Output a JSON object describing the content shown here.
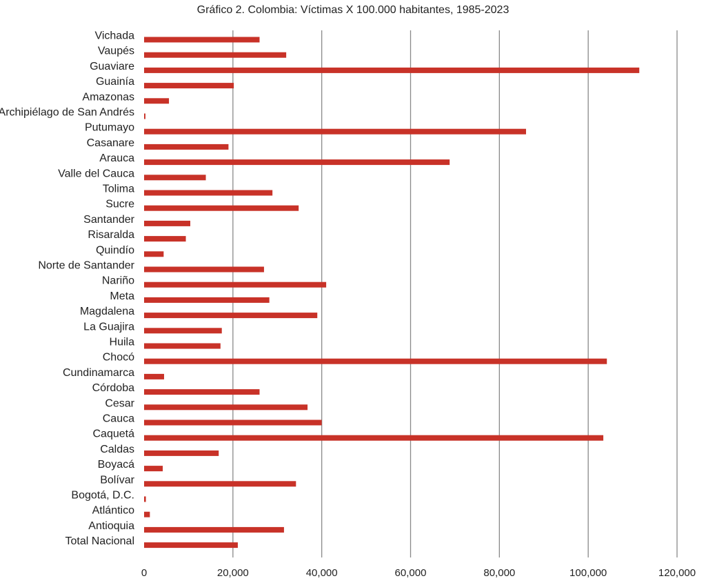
{
  "chart_data": {
    "type": "bar",
    "orientation": "horizontal",
    "title": "Gráfico 2. Colombia: Víctimas X 100.000 habitantes, 1985-2023",
    "xlabel": "",
    "ylabel": "",
    "xlim": [
      0,
      120000
    ],
    "grid": true,
    "bar_color": "#c83228",
    "grid_color": "#888888",
    "categories": [
      "Vichada",
      "Vaupés",
      "Guaviare",
      "Guainía",
      "Amazonas",
      "Archipiélago de San Andrés",
      "Putumayo",
      "Casanare",
      "Arauca",
      "Valle del Cauca",
      "Tolima",
      "Sucre",
      "Santander",
      "Risaralda",
      "Quindío",
      "Norte de Santander",
      "Nariño",
      "Meta",
      "Magdalena",
      "La Guajira",
      "Huila",
      "Chocó",
      "Cundinamarca",
      "Córdoba",
      "Cesar",
      "Cauca",
      "Caquetá",
      "Caldas",
      "Boyacá",
      "Bolívar",
      "Bogotá, D.C.",
      "Atlántico",
      "Antioquia",
      "Total Nacional"
    ],
    "values": [
      26000,
      32000,
      111500,
      20200,
      5600,
      300,
      86000,
      19000,
      68800,
      13900,
      28900,
      34800,
      10400,
      9400,
      4400,
      27000,
      41000,
      28200,
      39000,
      17500,
      17200,
      104200,
      4500,
      26000,
      36800,
      40000,
      103400,
      16800,
      4200,
      34200,
      400,
      1300,
      31500,
      21100
    ],
    "xticks": [
      "0",
      "20,000",
      "40,000",
      "60,000",
      "80,000",
      "100,000",
      "120,000"
    ],
    "xtick_values": [
      0,
      20000,
      40000,
      60000,
      80000,
      100000,
      120000
    ]
  }
}
